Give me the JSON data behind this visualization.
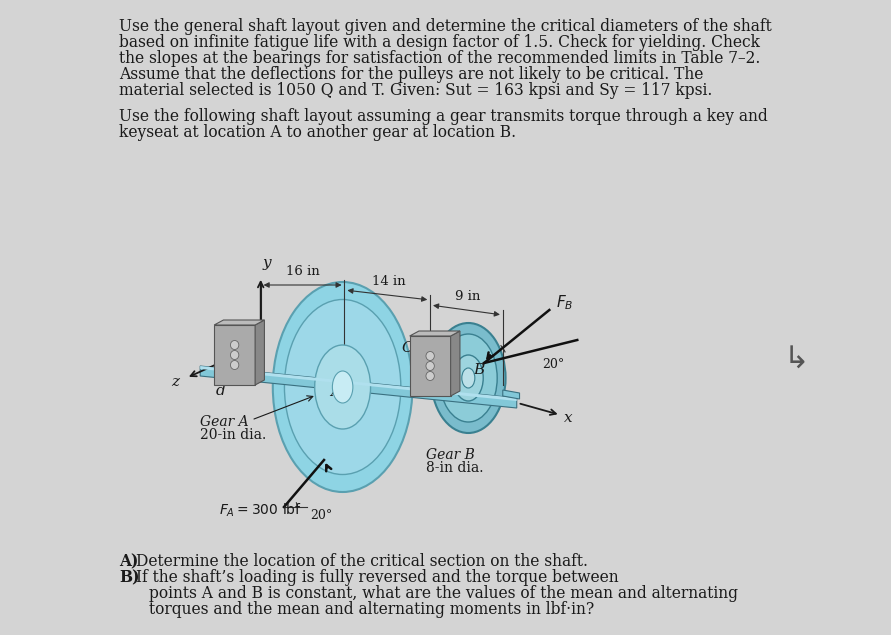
{
  "background_color": "#d4d4d4",
  "text_color": "#1a1a1a",
  "title_lines": [
    "Use the general shaft layout given and determine the critical diameters of the shaft",
    "based on infinite fatigue life with a design factor of 1.5. Check for yielding. Check",
    "the slopes at the bearings for satisfaction of the recommended limits in Table 7–2.",
    "Assume that the deflections for the pulleys are not likely to be critical. The",
    "material selected is 1050 Q and T. Given: Sut = 163 kpsi and Sy = 117 kpsi."
  ],
  "para2_lines": [
    "Use the following shaft layout assuming a gear transmits torque through a key and",
    "keyseat at location A to another gear at location B."
  ],
  "q_A_bold": "A)",
  "q_A_rest": "  Determine the location of the critical section on the shaft.",
  "q_B_bold": "B)",
  "q_B_rest": "  If the shaft’s loading is fully reversed and the torque between",
  "q_B2": "     points A and B is constant, what are the values of the mean and alternating",
  "q_B3": "     torques and the mean and alternating moments in lbf·in?",
  "shaft_color": "#82c8d8",
  "shaft_edge": "#3a7080",
  "gear_A_face": "#8ed4e4",
  "gear_A_rim": "#5aa0b0",
  "gear_B_face": "#7abccc",
  "gear_B_rim": "#3a8090",
  "bearing_fill": "#aaaaaa",
  "bearing_edge": "#555555",
  "ball_fill": "#cccccc",
  "ball_edge": "#666666",
  "dim_color": "#333333",
  "arrow_color": "#111111"
}
